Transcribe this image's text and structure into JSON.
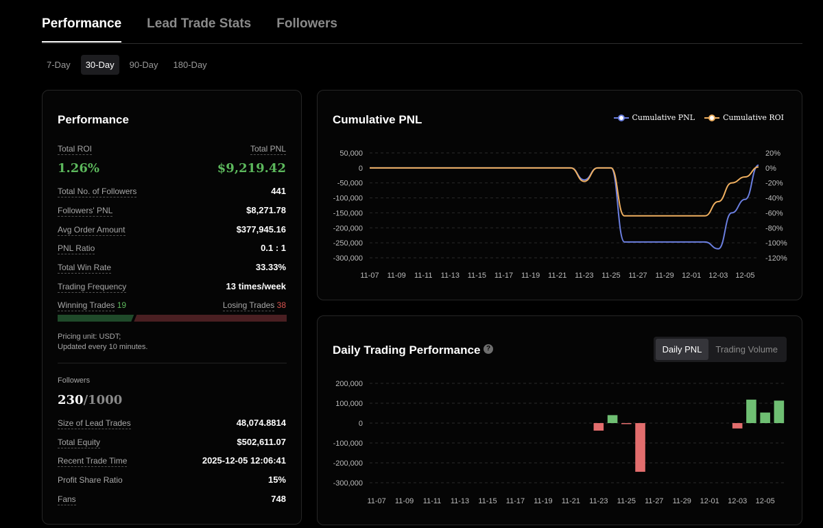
{
  "tabs": [
    {
      "label": "Performance",
      "active": true
    },
    {
      "label": "Lead Trade Stats",
      "active": false
    },
    {
      "label": "Followers",
      "active": false
    }
  ],
  "periods": [
    {
      "label": "7-Day",
      "active": false
    },
    {
      "label": "30-Day",
      "active": true
    },
    {
      "label": "90-Day",
      "active": false
    },
    {
      "label": "180-Day",
      "active": false
    }
  ],
  "performance": {
    "title": "Performance",
    "total_roi_label": "Total ROI",
    "total_roi": "1.26%",
    "total_pnl_label": "Total PNL",
    "total_pnl": "$9,219.42",
    "stats": [
      {
        "label": "Total No. of Followers",
        "value": "441"
      },
      {
        "label": "Followers' PNL",
        "value": "$8,271.78"
      },
      {
        "label": "Avg Order Amount",
        "value": "$377,945.16"
      },
      {
        "label": "PNL Ratio",
        "value": "0.1 : 1"
      },
      {
        "label": "Total Win Rate",
        "value": "33.33%"
      },
      {
        "label": "Trading Frequency",
        "value": "13 times/week"
      }
    ],
    "winning_label": "Winning Trades",
    "winning_count": "19",
    "losing_label": "Losing Trades",
    "losing_count": "38",
    "win_fraction": 0.3333,
    "note_line1": "Pricing unit: USDT;",
    "note_line2": "Updated every 10 minutes."
  },
  "followers": {
    "label": "Followers",
    "current": "230",
    "max": "/1000",
    "stats": [
      {
        "label": "Size of Lead Trades",
        "value": "48,074.8814",
        "dashed": true
      },
      {
        "label": "Total Equity",
        "value": "$502,611.07",
        "dashed": true
      },
      {
        "label": "Recent Trade Time",
        "value": "2025-12-05 12:06:41",
        "dashed": true
      },
      {
        "label": "Profit Share Ratio",
        "value": "15%",
        "dashed": false
      },
      {
        "label": "Fans",
        "value": "748",
        "dashed": true
      }
    ]
  },
  "cumulative": {
    "title": "Cumulative PNL",
    "legend": [
      "Cumulative PNL",
      "Cumulative ROI"
    ],
    "colors": {
      "pnl": "#6b7fe0",
      "roi": "#f0b060"
    }
  },
  "daily": {
    "title": "Daily Trading Performance",
    "help_icon": "question-circle-icon",
    "toggle": [
      {
        "label": "Daily PNL",
        "active": true
      },
      {
        "label": "Trading Volume",
        "active": false
      }
    ]
  },
  "chart_data": [
    {
      "type": "line",
      "title": "Cumulative PNL",
      "x_ticks": [
        "11-07",
        "11-09",
        "11-11",
        "11-13",
        "11-15",
        "11-17",
        "11-19",
        "11-21",
        "11-23",
        "11-25",
        "11-27",
        "11-29",
        "12-01",
        "12-03",
        "12-05"
      ],
      "y_left_ticks": [
        "50,000",
        "0",
        "-50,000",
        "-100,000",
        "-150,000",
        "-200,000",
        "-250,000",
        "-300,000"
      ],
      "y_right_ticks": [
        "20%",
        "0%",
        "-20%",
        "-40%",
        "-60%",
        "-80%",
        "-100%",
        "-120%"
      ],
      "ylim_left": [
        -300000,
        50000
      ],
      "ylim_right": [
        -120,
        20
      ],
      "grid": true,
      "legend_position": "top-right",
      "series": [
        {
          "name": "Cumulative PNL",
          "axis": "left",
          "x": [
            "11-07",
            "11-08",
            "11-09",
            "11-10",
            "11-11",
            "11-12",
            "11-13",
            "11-14",
            "11-15",
            "11-16",
            "11-17",
            "11-18",
            "11-19",
            "11-20",
            "11-21",
            "11-22",
            "11-23",
            "11-24",
            "11-25",
            "11-26",
            "11-27",
            "11-28",
            "11-29",
            "11-30",
            "12-01",
            "12-02",
            "12-03",
            "12-04",
            "12-05",
            "12-06"
          ],
          "values": [
            0,
            0,
            0,
            0,
            0,
            0,
            0,
            0,
            0,
            0,
            0,
            0,
            0,
            0,
            0,
            0,
            -40000,
            0,
            0,
            -247000,
            -247000,
            -247000,
            -247000,
            -247000,
            -247000,
            -247000,
            -270000,
            -150000,
            -105000,
            9219
          ]
        },
        {
          "name": "Cumulative ROI",
          "axis": "right",
          "x": [
            "11-07",
            "11-08",
            "11-09",
            "11-10",
            "11-11",
            "11-12",
            "11-13",
            "11-14",
            "11-15",
            "11-16",
            "11-17",
            "11-18",
            "11-19",
            "11-20",
            "11-21",
            "11-22",
            "11-23",
            "11-24",
            "11-25",
            "11-26",
            "11-27",
            "11-28",
            "11-29",
            "11-30",
            "12-01",
            "12-02",
            "12-03",
            "12-04",
            "12-05",
            "12-06"
          ],
          "values": [
            0,
            0,
            0,
            0,
            0,
            0,
            0,
            0,
            0,
            0,
            0,
            0,
            0,
            0,
            0,
            0,
            -18,
            0,
            0,
            -64,
            -64,
            -64,
            -64,
            -64,
            -64,
            -64,
            -45,
            -20,
            -12,
            1.26
          ]
        }
      ]
    },
    {
      "type": "bar",
      "title": "Daily Trading Performance",
      "x_ticks": [
        "11-07",
        "11-09",
        "11-11",
        "11-13",
        "11-15",
        "11-17",
        "11-19",
        "11-21",
        "11-23",
        "11-25",
        "11-27",
        "11-29",
        "12-01",
        "12-03",
        "12-05"
      ],
      "y_ticks": [
        "200,000",
        "100,000",
        "0",
        "-100,000",
        "-200,000",
        "-300,000"
      ],
      "ylim": [
        -300000,
        200000
      ],
      "grid": true,
      "categories": [
        "11-07",
        "11-08",
        "11-09",
        "11-10",
        "11-11",
        "11-12",
        "11-13",
        "11-14",
        "11-15",
        "11-16",
        "11-17",
        "11-18",
        "11-19",
        "11-20",
        "11-21",
        "11-22",
        "11-23",
        "11-24",
        "11-25",
        "11-26",
        "11-27",
        "11-28",
        "11-29",
        "11-30",
        "12-01",
        "12-02",
        "12-03",
        "12-04",
        "12-05",
        "12-06"
      ],
      "values": [
        0,
        0,
        0,
        0,
        0,
        0,
        0,
        0,
        0,
        0,
        0,
        0,
        0,
        0,
        0,
        0,
        -38000,
        40000,
        -5000,
        -245000,
        0,
        0,
        0,
        0,
        0,
        0,
        -27000,
        118000,
        53000,
        113000
      ],
      "colors": {
        "positive": "#6fbf73",
        "negative": "#e26d6d"
      }
    }
  ]
}
